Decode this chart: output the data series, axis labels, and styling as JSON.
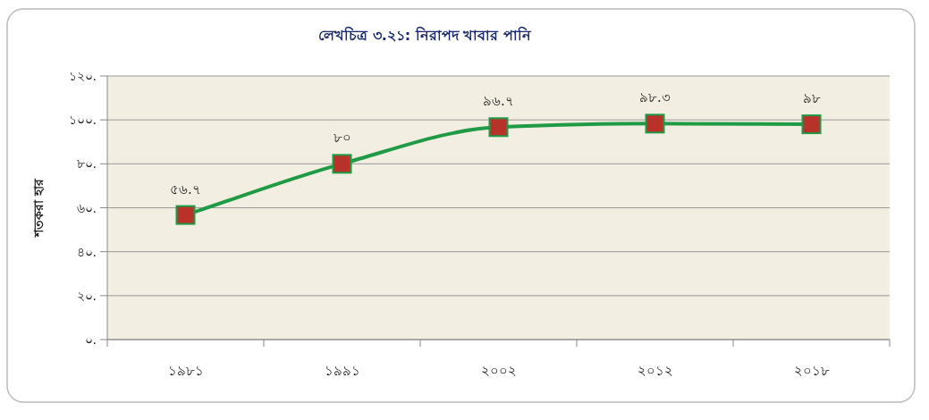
{
  "chart_data": {
    "type": "line",
    "title": "লেখচিত্র ৩.২১: নিরাপদ খাবার পানি",
    "ylabel": "শতকরা হার",
    "categories": [
      "১৯৮১",
      "১৯৯১",
      "২০০২",
      "২০১২",
      "২০১৮"
    ],
    "series": [
      {
        "color": "#1f9a45",
        "colors": [
          "#b8322a",
          "#b8322a",
          "#b8322a",
          "#b8322a",
          "#b8322a"
        ],
        "values": [
          56.7,
          80,
          96.7,
          98.3,
          98
        ],
        "value_labels": [
          "৫৬.৭",
          "৮০",
          "৯৬.৭",
          "৯৮.৩",
          "৯৮"
        ]
      }
    ],
    "ylim": [
      0,
      120
    ],
    "yticks": [
      {
        "value": 0,
        "label": "০."
      },
      {
        "value": 20,
        "label": "২০."
      },
      {
        "value": 40,
        "label": "৪০."
      },
      {
        "value": 60,
        "label": "৬০."
      },
      {
        "value": 80,
        "label": "৮০."
      },
      {
        "value": 100,
        "label": "১০০."
      },
      {
        "value": 120,
        "label": "১২০."
      }
    ],
    "grid": "y",
    "marker": "square",
    "line_style": "solid"
  }
}
